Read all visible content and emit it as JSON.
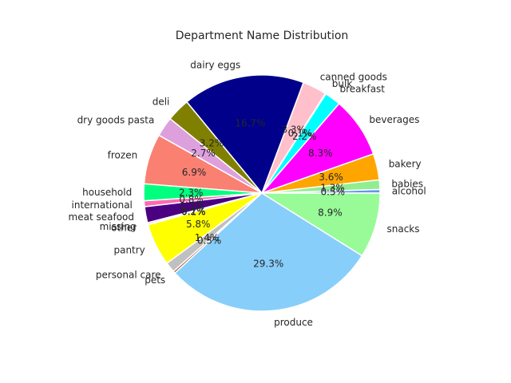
{
  "chart_data": {
    "type": "pie",
    "title": "Department Name Distribution",
    "start_angle_deg": 0,
    "direction": "counterclockwise",
    "slices": [
      {
        "label": "alcohol",
        "value": 0.5,
        "pct_label": "0.5%",
        "color": "#6495ED"
      },
      {
        "label": "babies",
        "value": 1.3,
        "pct_label": "1.3%",
        "color": "#90EE90"
      },
      {
        "label": "bakery",
        "value": 3.6,
        "pct_label": "3.6%",
        "color": "#FFA500"
      },
      {
        "label": "beverages",
        "value": 8.3,
        "pct_label": "8.3%",
        "color": "#FF00FF"
      },
      {
        "label": "breakfast",
        "value": 2.2,
        "pct_label": "2.2%",
        "color": "#00FFFF"
      },
      {
        "label": "bulk",
        "value": 0.1,
        "pct_label": "0.1%",
        "color": "#FFD700"
      },
      {
        "label": "canned goods",
        "value": 3.3,
        "pct_label": "3.3%",
        "color": "#FFC0CB"
      },
      {
        "label": "dairy eggs",
        "value": 16.7,
        "pct_label": "16.7%",
        "color": "#00008B"
      },
      {
        "label": "deli",
        "value": 3.2,
        "pct_label": "3.2%",
        "color": "#808000"
      },
      {
        "label": "dry goods pasta",
        "value": 2.7,
        "pct_label": "2.7%",
        "color": "#DDA0DD"
      },
      {
        "label": "frozen",
        "value": 6.9,
        "pct_label": "6.9%",
        "color": "#FA8072"
      },
      {
        "label": "household",
        "value": 2.3,
        "pct_label": "2.3%",
        "color": "#00FF7F"
      },
      {
        "label": "international",
        "value": 0.8,
        "pct_label": "0.8%",
        "color": "#FF69B4"
      },
      {
        "label": "meat seafood",
        "value": 2.2,
        "pct_label": "2.2%",
        "color": "#4B0082"
      },
      {
        "label": "missing",
        "value": 0.2,
        "pct_label": "0.2%",
        "color": "#DC143C"
      },
      {
        "label": "other",
        "value": 0.1,
        "pct_label": "0.1%",
        "color": "#8B4513"
      },
      {
        "label": "pantry",
        "value": 5.8,
        "pct_label": "5.8%",
        "color": "#FFFF00"
      },
      {
        "label": "personal care",
        "value": 1.4,
        "pct_label": "1.4%",
        "color": "#C0C0C0"
      },
      {
        "label": "pets",
        "value": 0.3,
        "pct_label": "0.3%",
        "color": "#A0522D"
      },
      {
        "label": "produce",
        "value": 29.3,
        "pct_label": "29.3%",
        "color": "#87CEFA"
      },
      {
        "label": "snacks",
        "value": 8.9,
        "pct_label": "8.9%",
        "color": "#98FB98"
      }
    ]
  }
}
